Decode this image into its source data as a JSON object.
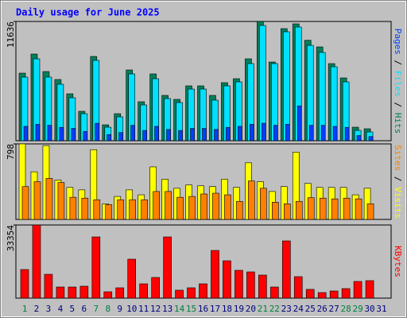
{
  "title": "Daily usage for June 2025",
  "legend_separator": " / ",
  "chart_data": [
    {
      "type": "bar",
      "categories": [
        "1",
        "2",
        "3",
        "4",
        "5",
        "6",
        "7",
        "8",
        "9",
        "10",
        "11",
        "12",
        "13",
        "14",
        "15",
        "16",
        "17",
        "18",
        "19",
        "20",
        "21",
        "22",
        "23",
        "24",
        "25",
        "26",
        "27",
        "28",
        "29",
        "30",
        "31"
      ],
      "category_colors": [
        "#008040",
        "#000080",
        "#000080",
        "#000080",
        "#000080",
        "#000080",
        "#008040",
        "#008040",
        "#000080",
        "#000080",
        "#000080",
        "#000080",
        "#000080",
        "#008040",
        "#008040",
        "#000080",
        "#000080",
        "#000080",
        "#000080",
        "#000080",
        "#008040",
        "#008040",
        "#000080",
        "#000080",
        "#000080",
        "#000080",
        "#000080",
        "#008040",
        "#008040",
        "#000080",
        "#000080"
      ],
      "ylim": [
        0,
        11636
      ],
      "yticks": [
        11636
      ],
      "series": [
        {
          "name": "Hits",
          "color": "#00805c",
          "values": [
            6594,
            8455,
            6749,
            5973,
            4577,
            2870,
            8223,
            1551,
            2637,
            6904,
            3801,
            6516,
            4422,
            4034,
            5352,
            5352,
            4422,
            5663,
            6051,
            7990,
            11636,
            7680,
            10938,
            11403,
            9800,
            9153,
            7524,
            6128,
            1319,
            1164,
            0
          ]
        },
        {
          "name": "Files",
          "color": "#00e0ff",
          "values": [
            6206,
            7989,
            6206,
            5508,
            4189,
            2637,
            7835,
            1319,
            2327,
            6516,
            3491,
            6051,
            4112,
            3724,
            5041,
            5041,
            3956,
            5352,
            5741,
            7525,
            11248,
            7524,
            10628,
            11093,
            9300,
            8610,
            7214,
            5741,
            1008,
            853,
            0
          ]
        },
        {
          "name": "Pages",
          "color": "#0040ff",
          "values": [
            1400,
            1600,
            1500,
            1300,
            1200,
            900,
            1700,
            600,
            800,
            1500,
            1000,
            1400,
            1100,
            1000,
            1200,
            1200,
            1100,
            1300,
            1400,
            1600,
            1700,
            1500,
            1600,
            3400,
            1500,
            1500,
            1400,
            1300,
            500,
            400,
            0
          ]
        }
      ]
    },
    {
      "type": "bar",
      "ylim": [
        0,
        798
      ],
      "yticks": [
        798
      ],
      "series": [
        {
          "name": "Visits",
          "color": "#ffff00",
          "values": [
            798,
            503,
            780,
            416,
            338,
            312,
            737,
            165,
            243,
            312,
            260,
            555,
            425,
            329,
            364,
            355,
            347,
            425,
            338,
            598,
            399,
            295,
            347,
            711,
            380,
            338,
            338,
            338,
            260,
            329,
            0
          ]
        },
        {
          "name": "Sites",
          "color": "#ff8000",
          "values": [
            347,
            399,
            434,
            390,
            234,
            225,
            208,
            156,
            208,
            208,
            208,
            295,
            295,
            234,
            243,
            269,
            277,
            260,
            191,
            407,
            329,
            182,
            165,
            191,
            230,
            225,
            217,
            225,
            217,
            165,
            0
          ]
        }
      ]
    },
    {
      "type": "bar",
      "ylim": [
        0,
        33354
      ],
      "yticks": [
        33354
      ],
      "series": [
        {
          "name": "KBytes",
          "color": "#ff0000",
          "values": [
            13050,
            33354,
            10875,
            5075,
            5075,
            5438,
            27913,
            2900,
            4713,
            17763,
            6525,
            9425,
            27913,
            3625,
            4713,
            6525,
            21750,
            17038,
            12688,
            11963,
            10513,
            5075,
            26100,
            9788,
            4000,
            2538,
            3263,
            4350,
            7613,
            7975,
            0
          ]
        }
      ]
    }
  ]
}
